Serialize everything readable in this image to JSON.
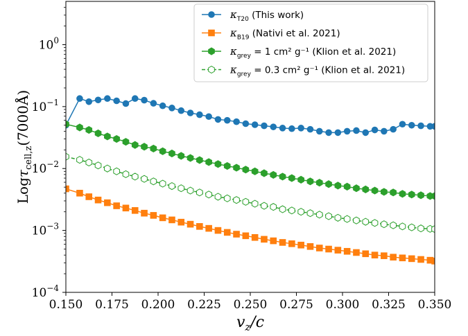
{
  "chart_data": {
    "type": "line",
    "xlabel": "v_z/c",
    "ylabel": "Log τ_cell,z(7000Å)",
    "xlim": [
      0.15,
      0.35
    ],
    "ylim": [
      0.0001,
      5
    ],
    "yscale": "log",
    "grid": false,
    "legend_position": "top-right",
    "x_ticks": [
      "0.150",
      "0.175",
      "0.200",
      "0.225",
      "0.250",
      "0.275",
      "0.300",
      "0.325",
      "0.350"
    ],
    "y_ticks": [
      "10^-4",
      "10^-3",
      "10^-2",
      "10^-1",
      "10^0"
    ],
    "series": [
      {
        "name": "κ_T20 (This work)",
        "color": "#1f77b4",
        "marker": "circle",
        "linestyle": "solid",
        "x": [
          0.15,
          0.1575,
          0.1625,
          0.1675,
          0.1725,
          0.1775,
          0.1825,
          0.1875,
          0.1925,
          0.1975,
          0.2025,
          0.2075,
          0.2125,
          0.2175,
          0.2225,
          0.2275,
          0.2325,
          0.2375,
          0.2425,
          0.2475,
          0.2525,
          0.2575,
          0.2625,
          0.2675,
          0.2725,
          0.2775,
          0.2825,
          0.2875,
          0.2925,
          0.2975,
          0.3025,
          0.3075,
          0.3125,
          0.3175,
          0.3225,
          0.3275,
          0.3325,
          0.3375,
          0.3425,
          0.3475,
          0.35
        ],
        "y": [
          0.05,
          0.135,
          0.12,
          0.128,
          0.135,
          0.124,
          0.112,
          0.135,
          0.127,
          0.113,
          0.103,
          0.095,
          0.086,
          0.079,
          0.074,
          0.069,
          0.062,
          0.06,
          0.057,
          0.053,
          0.051,
          0.049,
          0.047,
          0.045,
          0.044,
          0.045,
          0.043,
          0.04,
          0.038,
          0.038,
          0.04,
          0.041,
          0.038,
          0.042,
          0.04,
          0.043,
          0.052,
          0.05,
          0.049,
          0.048,
          0.048
        ]
      },
      {
        "name": "κ_B19 (Nativi et al. 2021)",
        "color": "#ff7f0e",
        "marker": "square",
        "linestyle": "solid",
        "x": [
          0.15,
          0.1575,
          0.1625,
          0.1675,
          0.1725,
          0.1775,
          0.1825,
          0.1875,
          0.1925,
          0.1975,
          0.2025,
          0.2075,
          0.2125,
          0.2175,
          0.2225,
          0.2275,
          0.2325,
          0.2375,
          0.2425,
          0.2475,
          0.2525,
          0.2575,
          0.2625,
          0.2675,
          0.2725,
          0.2775,
          0.2825,
          0.2875,
          0.2925,
          0.2975,
          0.3025,
          0.3075,
          0.3125,
          0.3175,
          0.3225,
          0.3275,
          0.3325,
          0.3375,
          0.3425,
          0.3475,
          0.35
        ],
        "y": [
          0.0047,
          0.004,
          0.0035,
          0.0031,
          0.0028,
          0.0025,
          0.0023,
          0.0021,
          0.0019,
          0.00175,
          0.0016,
          0.00148,
          0.00136,
          0.00126,
          0.00116,
          0.00108,
          0.001,
          0.00093,
          0.00087,
          0.00082,
          0.00077,
          0.00072,
          0.00068,
          0.00064,
          0.00061,
          0.00058,
          0.00055,
          0.00052,
          0.0005,
          0.00048,
          0.00046,
          0.00044,
          0.00042,
          0.0004,
          0.00039,
          0.00037,
          0.00036,
          0.00035,
          0.00034,
          0.00033,
          0.00032
        ]
      },
      {
        "name": "κ_grey = 1 cm² g⁻¹ (Klion et al. 2021)",
        "color": "#2ca02c",
        "marker": "hexagon",
        "linestyle": "solid",
        "x": [
          0.15,
          0.1575,
          0.1625,
          0.1675,
          0.1725,
          0.1775,
          0.1825,
          0.1875,
          0.1925,
          0.1975,
          0.2025,
          0.2075,
          0.2125,
          0.2175,
          0.2225,
          0.2275,
          0.2325,
          0.2375,
          0.2425,
          0.2475,
          0.2525,
          0.2575,
          0.2625,
          0.2675,
          0.2725,
          0.2775,
          0.2825,
          0.2875,
          0.2925,
          0.2975,
          0.3025,
          0.3075,
          0.3125,
          0.3175,
          0.3225,
          0.3275,
          0.3325,
          0.3375,
          0.3425,
          0.3475,
          0.35
        ],
        "y": [
          0.052,
          0.046,
          0.042,
          0.037,
          0.033,
          0.03,
          0.027,
          0.024,
          0.0225,
          0.021,
          0.019,
          0.0175,
          0.016,
          0.0148,
          0.0137,
          0.0127,
          0.0118,
          0.011,
          0.0103,
          0.0096,
          0.009,
          0.0084,
          0.0079,
          0.0074,
          0.007,
          0.0066,
          0.0062,
          0.0059,
          0.0056,
          0.0053,
          0.0051,
          0.0048,
          0.0046,
          0.0044,
          0.0042,
          0.0041,
          0.0039,
          0.0038,
          0.0037,
          0.0036,
          0.0036
        ]
      },
      {
        "name": "κ_grey = 0.3 cm² g⁻¹ (Klion et al. 2021)",
        "color": "#2ca02c",
        "marker": "hexagon-open",
        "linestyle": "dashed",
        "x": [
          0.15,
          0.1575,
          0.1625,
          0.1675,
          0.1725,
          0.1775,
          0.1825,
          0.1875,
          0.1925,
          0.1975,
          0.2025,
          0.2075,
          0.2125,
          0.2175,
          0.2225,
          0.2275,
          0.2325,
          0.2375,
          0.2425,
          0.2475,
          0.2525,
          0.2575,
          0.2625,
          0.2675,
          0.2725,
          0.2775,
          0.2825,
          0.2875,
          0.2925,
          0.2975,
          0.3025,
          0.3075,
          0.3125,
          0.3175,
          0.3225,
          0.3275,
          0.3325,
          0.3375,
          0.3425,
          0.3475,
          0.35
        ],
        "y": [
          0.0155,
          0.0138,
          0.0125,
          0.0112,
          0.01,
          0.009,
          0.0081,
          0.0074,
          0.0068,
          0.0062,
          0.0057,
          0.0052,
          0.0048,
          0.0044,
          0.0041,
          0.0038,
          0.0035,
          0.0033,
          0.0031,
          0.0029,
          0.0027,
          0.0025,
          0.0024,
          0.0022,
          0.0021,
          0.002,
          0.0019,
          0.0018,
          0.0017,
          0.0016,
          0.00153,
          0.00145,
          0.00138,
          0.00132,
          0.00126,
          0.00121,
          0.00116,
          0.00112,
          0.00108,
          0.00106,
          0.00105
        ]
      }
    ],
    "legend": {
      "entries": [
        {
          "symbol": "κ",
          "sub": "T20",
          "text": " (This work)"
        },
        {
          "symbol": "κ",
          "sub": "B19",
          "text": " (Nativi et al. 2021)"
        },
        {
          "symbol": "κ",
          "sub": "grey",
          "text": " = 1 cm² g⁻¹ (Klion et al. 2021)"
        },
        {
          "symbol": "κ",
          "sub": "grey",
          "text": " = 0.3 cm² g⁻¹ (Klion et al. 2021)"
        }
      ]
    }
  }
}
